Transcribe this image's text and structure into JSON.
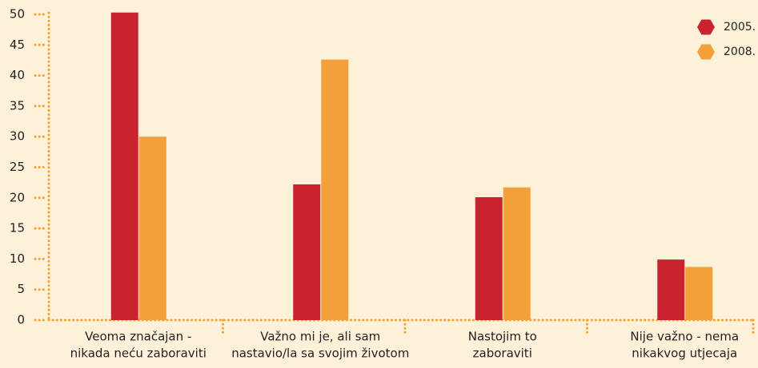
{
  "chart_data": {
    "type": "bar",
    "categories": [
      [
        "Veoma značajan -",
        "nikada neću zaboraviti"
      ],
      [
        "Važno mi je, ali sam",
        "nastavio/la sa svojim životom"
      ],
      [
        "Nastojim to",
        "zaboraviti"
      ],
      [
        "Nije važno - nema",
        "nikakvog utjecaja"
      ]
    ],
    "series": [
      {
        "name": "2005.",
        "color": "#c8232f",
        "values": [
          50.3,
          22.2,
          20.1,
          9.9
        ]
      },
      {
        "name": "2008.",
        "color": "#f4a03a",
        "values": [
          30.0,
          42.6,
          21.7,
          8.7
        ]
      }
    ],
    "ylim": [
      0,
      50
    ],
    "yticks": [
      0,
      5,
      10,
      15,
      20,
      25,
      30,
      35,
      40,
      45,
      50
    ],
    "legend": "top-right"
  }
}
